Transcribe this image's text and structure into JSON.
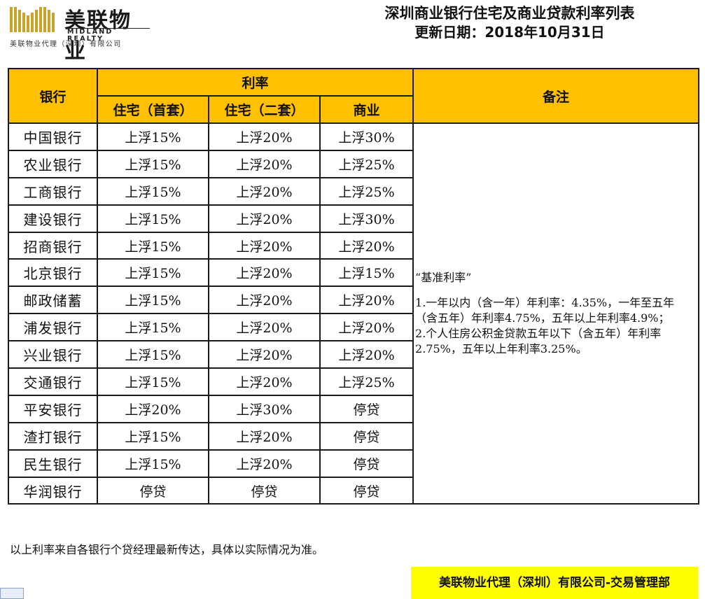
{
  "logo": {
    "name_cn": "美联物业",
    "name_en": "MIDLAND REALTY",
    "subtitle": "美联物业代理（深圳）有限公司",
    "color": "#c9a227"
  },
  "header": {
    "title": "深圳商业银行住宅及商业贷款利率列表",
    "update_date": "更新日期：2018年10月31日"
  },
  "table": {
    "col_bank": "银行",
    "col_rate": "利率",
    "col_home_first": "住宅（首套）",
    "col_home_second": "住宅（二套）",
    "col_commercial": "商业",
    "col_notes": "备注",
    "rows": [
      {
        "bank": "中国银行",
        "first": "上浮15%",
        "second": "上浮20%",
        "commercial": "上浮30%"
      },
      {
        "bank": "农业银行",
        "first": "上浮15%",
        "second": "上浮20%",
        "commercial": "上浮25%"
      },
      {
        "bank": "工商银行",
        "first": "上浮15%",
        "second": "上浮20%",
        "commercial": "上浮25%"
      },
      {
        "bank": "建设银行",
        "first": "上浮15%",
        "second": "上浮20%",
        "commercial": "上浮30%"
      },
      {
        "bank": "招商银行",
        "first": "上浮15%",
        "second": "上浮20%",
        "commercial": "上浮20%"
      },
      {
        "bank": "北京银行",
        "first": "上浮15%",
        "second": "上浮20%",
        "commercial": "上浮15%"
      },
      {
        "bank": "邮政储蓄",
        "first": "上浮15%",
        "second": "上浮20%",
        "commercial": "上浮20%"
      },
      {
        "bank": "浦发银行",
        "first": "上浮15%",
        "second": "上浮20%",
        "commercial": "上浮20%"
      },
      {
        "bank": "兴业银行",
        "first": "上浮15%",
        "second": "上浮20%",
        "commercial": "上浮20%"
      },
      {
        "bank": "交通银行",
        "first": "上浮15%",
        "second": "上浮20%",
        "commercial": "上浮25%"
      },
      {
        "bank": "平安银行",
        "first": "上浮20%",
        "second": "上浮30%",
        "commercial": "停贷"
      },
      {
        "bank": "渣打银行",
        "first": "上浮15%",
        "second": "上浮20%",
        "commercial": "停贷"
      },
      {
        "bank": "民生银行",
        "first": "上浮15%",
        "second": "上浮20%",
        "commercial": "停贷"
      },
      {
        "bank": "华润银行",
        "first": "停贷",
        "second": "停贷",
        "commercial": "停贷"
      }
    ],
    "notes": {
      "lead": "“基准利率”",
      "item1": "1.一年以内（含一年）年利率：4.35%，一年至五年（含五年）年利率4.75%，五年以上年利率4.9%；",
      "item2": "2.个人住房公积金贷款五年以下（含五年）年利率2.75%，五年以上年利率3.25%。"
    }
  },
  "footnote": "以上利率来自各银行个贷经理最新传达，具体以实际情况为准。",
  "company": "美联物业代理（深圳）有限公司-交易管理部",
  "colors": {
    "header_fill": "#ffc000",
    "company_fill": "#ffff00"
  }
}
